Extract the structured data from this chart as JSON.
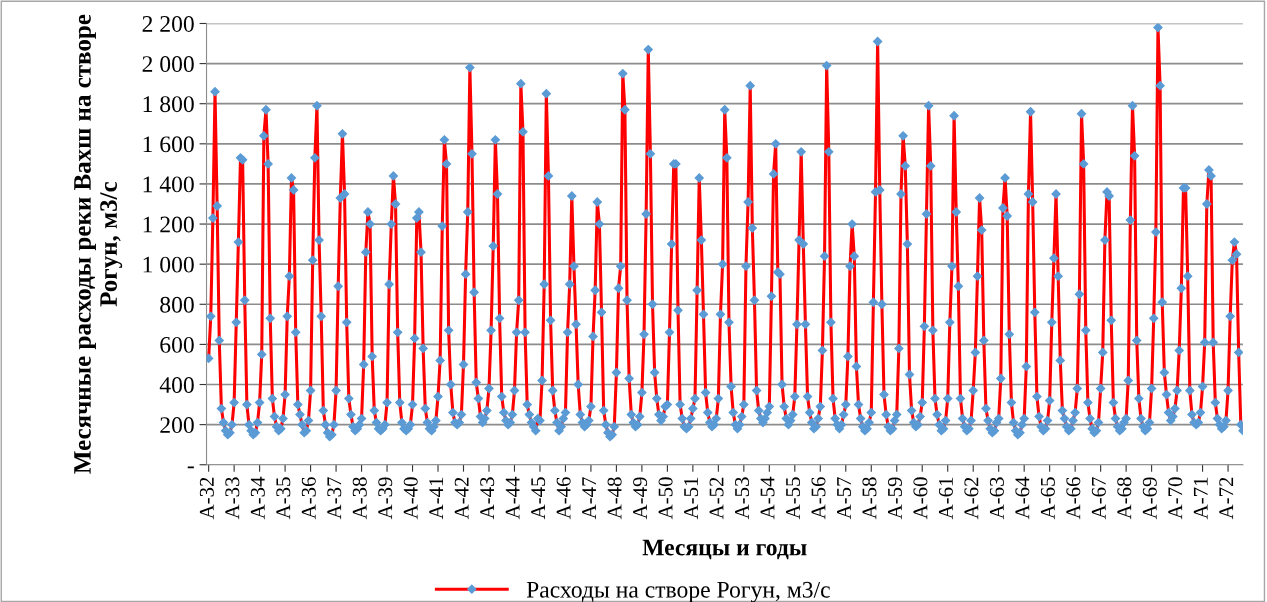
{
  "chart_data": {
    "type": "line",
    "xlabel": "Месяцы и годы",
    "ylabel": "Месячные расходы реки Вахш на створе Рогун, м3/с",
    "categories": [
      "A-32",
      null,
      null,
      null,
      null,
      null,
      null,
      null,
      null,
      null,
      null,
      null,
      "A-33",
      null,
      null,
      null,
      null,
      null,
      null,
      null,
      null,
      null,
      null,
      null,
      "A-34",
      null,
      null,
      null,
      null,
      null,
      null,
      null,
      null,
      null,
      null,
      null,
      "A-35",
      null,
      null,
      null,
      null,
      null,
      null,
      null,
      null,
      null,
      null,
      null,
      "A-36",
      null,
      null,
      null,
      null,
      null,
      null,
      null,
      null,
      null,
      null,
      null,
      "A-37",
      null,
      null,
      null,
      null,
      null,
      null,
      null,
      null,
      null,
      null,
      null,
      "A-38",
      null,
      null,
      null,
      null,
      null,
      null,
      null,
      null,
      null,
      null,
      null,
      "A-39",
      null,
      null,
      null,
      null,
      null,
      null,
      null,
      null,
      null,
      null,
      null,
      "A-40",
      null,
      null,
      null,
      null,
      null,
      null,
      null,
      null,
      null,
      null,
      null,
      "A-41",
      null,
      null,
      null,
      null,
      null,
      null,
      null,
      null,
      null,
      null,
      null,
      "A-42",
      null,
      null,
      null,
      null,
      null,
      null,
      null,
      null,
      null,
      null,
      null,
      "A-43",
      null,
      null,
      null,
      null,
      null,
      null,
      null,
      null,
      null,
      null,
      null,
      "A-44",
      null,
      null,
      null,
      null,
      null,
      null,
      null,
      null,
      null,
      null,
      null,
      "A-45",
      null,
      null,
      null,
      null,
      null,
      null,
      null,
      null,
      null,
      null,
      null,
      "A-46",
      null,
      null,
      null,
      null,
      null,
      null,
      null,
      null,
      null,
      null,
      null,
      "A-47",
      null,
      null,
      null,
      null,
      null,
      null,
      null,
      null,
      null,
      null,
      null,
      "A-48",
      null,
      null,
      null,
      null,
      null,
      null,
      null,
      null,
      null,
      null,
      null,
      "A-49",
      null,
      null,
      null,
      null,
      null,
      null,
      null,
      null,
      null,
      null,
      null,
      "A-50",
      null,
      null,
      null,
      null,
      null,
      null,
      null,
      null,
      null,
      null,
      null,
      "A-51",
      null,
      null,
      null,
      null,
      null,
      null,
      null,
      null,
      null,
      null,
      null,
      "A-52",
      null,
      null,
      null,
      null,
      null,
      null,
      null,
      null,
      null,
      null,
      null,
      "A-53",
      null,
      null,
      null,
      null,
      null,
      null,
      null,
      null,
      null,
      null,
      null,
      "A-54",
      null,
      null,
      null,
      null,
      null,
      null,
      null,
      null,
      null,
      null,
      null,
      "A-55",
      null,
      null,
      null,
      null,
      null,
      null,
      null,
      null,
      null,
      null,
      null,
      "A-56",
      null,
      null,
      null,
      null,
      null,
      null,
      null,
      null,
      null,
      null,
      null,
      "A-57",
      null,
      null,
      null,
      null,
      null,
      null,
      null,
      null,
      null,
      null,
      null,
      "A-58",
      null,
      null,
      null,
      null,
      null,
      null,
      null,
      null,
      null,
      null,
      null,
      "A-59",
      null,
      null,
      null,
      null,
      null,
      null,
      null,
      null,
      null,
      null,
      null,
      "A-60",
      null,
      null,
      null,
      null,
      null,
      null,
      null,
      null,
      null,
      null,
      null,
      "A-61",
      null,
      null,
      null,
      null,
      null,
      null,
      null,
      null,
      null,
      null,
      null,
      "A-62",
      null,
      null,
      null,
      null,
      null,
      null,
      null,
      null,
      null,
      null,
      null,
      "A-63",
      null,
      null,
      null,
      null,
      null,
      null,
      null,
      null,
      null,
      null,
      null,
      "A-64",
      null,
      null,
      null,
      null,
      null,
      null,
      null,
      null,
      null,
      null,
      null,
      "A-65",
      null,
      null,
      null,
      null,
      null,
      null,
      null,
      null,
      null,
      null,
      null,
      "A-66",
      null,
      null,
      null,
      null,
      null,
      null,
      null,
      null,
      null,
      null,
      null,
      "A-67",
      null,
      null,
      null,
      null,
      null,
      null,
      null,
      null,
      null,
      null,
      null,
      "A-68",
      null,
      null,
      null,
      null,
      null,
      null,
      null,
      null,
      null,
      null,
      null,
      "A-69",
      null,
      null,
      null,
      null,
      null,
      null,
      null,
      null,
      null,
      null,
      null,
      "A-70",
      null,
      null,
      null,
      null,
      null,
      null,
      null,
      null,
      null,
      null,
      null,
      "A-71",
      null,
      null,
      null,
      null,
      null,
      null,
      null,
      null,
      null,
      null,
      null,
      "A-72",
      null,
      null,
      null,
      null,
      null,
      null,
      null
    ],
    "ylim": [
      0,
      2200
    ],
    "yticks": [
      {
        "value": 0,
        "label": "-"
      },
      200,
      400,
      600,
      800,
      {
        "value": 1000,
        "label": "1 000"
      },
      {
        "value": 1200,
        "label": "1 200"
      },
      {
        "value": 1400,
        "label": "1 400"
      },
      {
        "value": 1600,
        "label": "1 600"
      },
      {
        "value": 1800,
        "label": "1 800"
      },
      {
        "value": 2000,
        "label": "2 000"
      },
      {
        "value": 2200,
        "label": "2 200"
      }
    ],
    "grid": "y",
    "legend": "bottom",
    "marker": "diamond",
    "line_style": "solid",
    "series": [
      {
        "name": "Расходы на створе Рогун, м3/с",
        "color": "#ff0000",
        "values": [
          530,
          740,
          1230,
          1860,
          1290,
          620,
          280,
          210,
          170,
          150,
          160,
          200,
          310,
          710,
          1110,
          1530,
          1520,
          820,
          300,
          200,
          170,
          150,
          160,
          210,
          310,
          550,
          1640,
          1770,
          1500,
          730,
          330,
          240,
          190,
          170,
          180,
          230,
          350,
          740,
          940,
          1430,
          1370,
          660,
          300,
          250,
          200,
          160,
          170,
          220,
          370,
          1020,
          1530,
          1790,
          1120,
          740,
          270,
          200,
          160,
          140,
          150,
          200,
          370,
          890,
          1330,
          1650,
          1350,
          710,
          330,
          250,
          190,
          170,
          180,
          200,
          230,
          500,
          1060,
          1260,
          1200,
          540,
          270,
          210,
          180,
          170,
          180,
          200,
          310,
          900,
          1200,
          1440,
          1300,
          660,
          310,
          210,
          180,
          170,
          180,
          200,
          300,
          630,
          1230,
          1260,
          1060,
          580,
          280,
          210,
          180,
          170,
          190,
          220,
          340,
          520,
          1190,
          1620,
          1500,
          670,
          400,
          260,
          210,
          200,
          210,
          250,
          500,
          950,
          1260,
          1980,
          1550,
          860,
          410,
          330,
          240,
          210,
          230,
          270,
          380,
          670,
          1090,
          1620,
          1350,
          730,
          340,
          260,
          220,
          200,
          210,
          250,
          370,
          660,
          820,
          1900,
          1660,
          660,
          300,
          250,
          210,
          190,
          170,
          230,
          220,
          420,
          900,
          1850,
          1440,
          720,
          370,
          270,
          210,
          170,
          190,
          230,
          260,
          660,
          900,
          1340,
          990,
          700,
          400,
          250,
          210,
          190,
          200,
          220,
          290,
          640,
          870,
          1310,
          1200,
          760,
          270,
          200,
          160,
          140,
          150,
          190,
          460,
          880,
          990,
          1950,
          1770,
          820,
          430,
          250,
          210,
          190,
          200,
          240,
          360,
          650,
          1250,
          2070,
          1550,
          800,
          460,
          330,
          250,
          220,
          240,
          290,
          300,
          660,
          1100,
          1500,
          1500,
          770,
          300,
          230,
          190,
          180,
          190,
          230,
          280,
          330,
          870,
          1430,
          1120,
          750,
          360,
          260,
          210,
          190,
          200,
          230,
          330,
          750,
          1000,
          1770,
          1530,
          710,
          390,
          260,
          200,
          180,
          200,
          240,
          300,
          990,
          1310,
          1890,
          1180,
          820,
          370,
          270,
          230,
          210,
          230,
          260,
          290,
          840,
          1450,
          1600,
          960,
          950,
          400,
          290,
          230,
          200,
          220,
          250,
          340,
          700,
          1120,
          1560,
          1100,
          700,
          340,
          260,
          210,
          180,
          190,
          230,
          290,
          570,
          1040,
          1990,
          1560,
          710,
          330,
          230,
          200,
          180,
          200,
          250,
          300,
          540,
          990,
          1200,
          1040,
          490,
          300,
          230,
          190,
          170,
          180,
          210,
          260,
          810,
          1360,
          2110,
          1370,
          800,
          350,
          250,
          190,
          170,
          180,
          220,
          250,
          580,
          1350,
          1640,
          1490,
          1100,
          450,
          270,
          210,
          190,
          200,
          240,
          310,
          690,
          1250,
          1790,
          1490,
          670,
          330,
          250,
          200,
          170,
          180,
          220,
          330,
          710,
          990,
          1740,
          1260,
          890,
          330,
          230,
          190,
          170,
          180,
          220,
          370,
          560,
          940,
          1330,
          1170,
          620,
          280,
          220,
          180,
          160,
          170,
          210,
          230,
          430,
          1280,
          1430,
          1240,
          650,
          310,
          210,
          170,
          150,
          160,
          200,
          230,
          490,
          1350,
          1760,
          1310,
          760,
          340,
          240,
          190,
          170,
          180,
          220,
          320,
          710,
          1030,
          1350,
          940,
          520,
          270,
          230,
          190,
          170,
          180,
          220,
          260,
          380,
          850,
          1750,
          1500,
          670,
          310,
          230,
          180,
          160,
          170,
          210,
          380,
          560,
          1120,
          1360,
          1340,
          720,
          310,
          230,
          190,
          170,
          180,
          210,
          230,
          420,
          1220,
          1790,
          1540,
          620,
          330,
          230,
          190,
          170,
          180,
          210,
          380,
          730,
          1160,
          2180,
          1890,
          810,
          460,
          350,
          260,
          220,
          240,
          280,
          370,
          570,
          880,
          1380,
          1380,
          940,
          370,
          250,
          210,
          200,
          210,
          260,
          390,
          610,
          1300,
          1470,
          1440,
          610,
          310,
          230,
          200,
          180,
          190,
          220,
          370,
          740,
          1020,
          1110,
          1050,
          560,
          200,
          170
        ]
      }
    ]
  }
}
